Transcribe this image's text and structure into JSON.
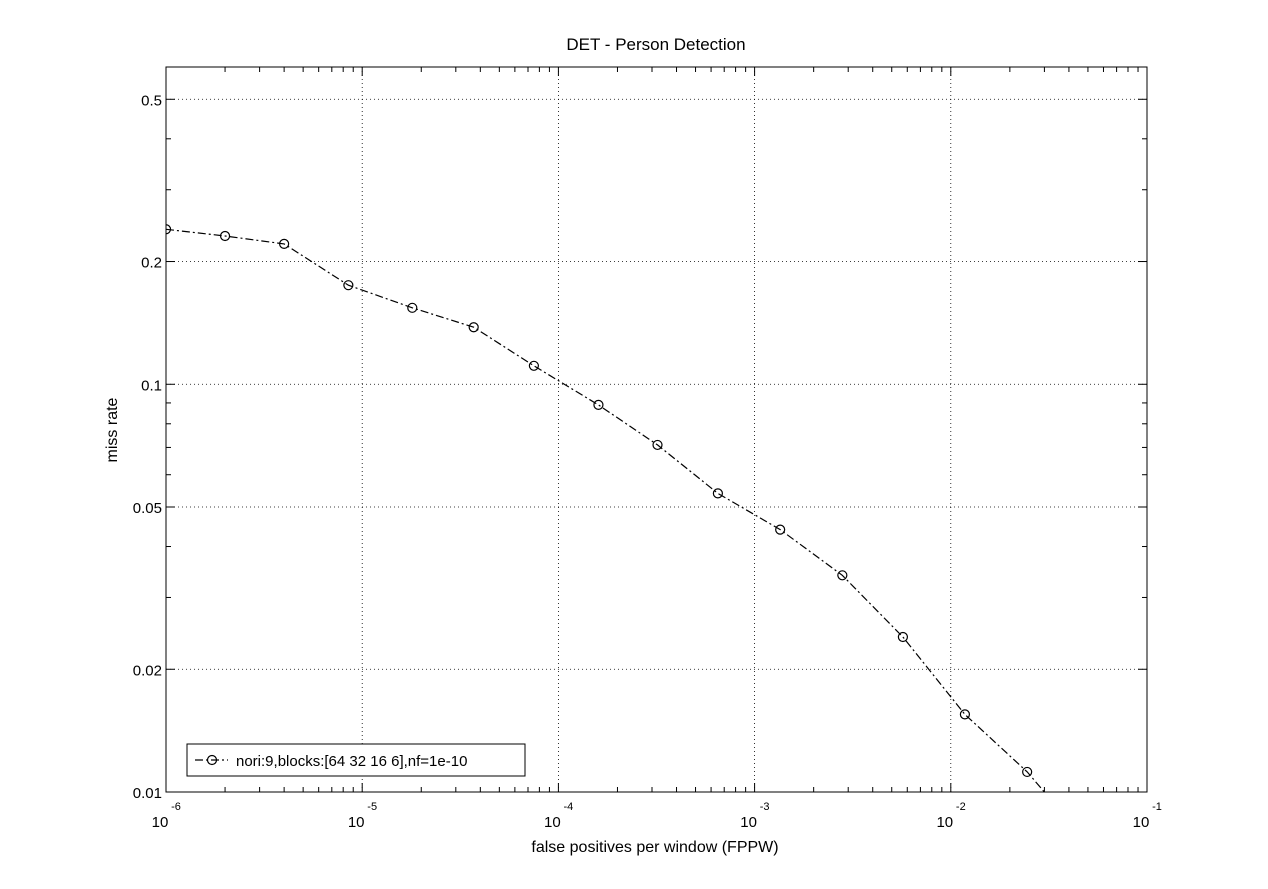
{
  "chart_data": {
    "type": "line",
    "title": "DET - Person Detection",
    "xlabel": "false positives per window (FPPW)",
    "ylabel": "miss rate",
    "x_scale": "log",
    "y_scale": "log",
    "xlim": [
      1e-06,
      0.1
    ],
    "ylim": [
      0.01,
      0.6
    ],
    "grid": true,
    "legend_position": "bottom-left",
    "x_ticks": [
      {
        "base": "10",
        "exp": "-6",
        "value": 1e-06
      },
      {
        "base": "10",
        "exp": "-5",
        "value": 1e-05
      },
      {
        "base": "10",
        "exp": "-4",
        "value": 0.0001
      },
      {
        "base": "10",
        "exp": "-3",
        "value": 0.001
      },
      {
        "base": "10",
        "exp": "-2",
        "value": 0.01
      },
      {
        "base": "10",
        "exp": "-1",
        "value": 0.1
      }
    ],
    "y_ticks": [
      {
        "label": "0.01",
        "value": 0.01
      },
      {
        "label": "0.02",
        "value": 0.02
      },
      {
        "label": "0.05",
        "value": 0.05
      },
      {
        "label": "0.1",
        "value": 0.1
      },
      {
        "label": "0.2",
        "value": 0.2
      },
      {
        "label": "0.5",
        "value": 0.5
      }
    ],
    "series": [
      {
        "name": "nori:9,blocks:[64 32 16 6],nf=1e-10",
        "marker": "circle",
        "line_style": "dash-dot",
        "color": "#000000",
        "points": [
          {
            "x": 1e-06,
            "y": 0.24
          },
          {
            "x": 2e-06,
            "y": 0.231
          },
          {
            "x": 4e-06,
            "y": 0.221
          },
          {
            "x": 8.5e-06,
            "y": 0.175
          },
          {
            "x": 1.8e-05,
            "y": 0.154
          },
          {
            "x": 3.7e-05,
            "y": 0.138
          },
          {
            "x": 7.5e-05,
            "y": 0.111
          },
          {
            "x": 0.00016,
            "y": 0.089
          },
          {
            "x": 0.00032,
            "y": 0.071
          },
          {
            "x": 0.00065,
            "y": 0.054
          },
          {
            "x": 0.00135,
            "y": 0.044
          },
          {
            "x": 0.0028,
            "y": 0.034
          },
          {
            "x": 0.0057,
            "y": 0.024
          },
          {
            "x": 0.0118,
            "y": 0.0155
          },
          {
            "x": 0.0245,
            "y": 0.0112
          },
          {
            "x": 0.04,
            "y": 0.0085
          }
        ]
      }
    ]
  }
}
